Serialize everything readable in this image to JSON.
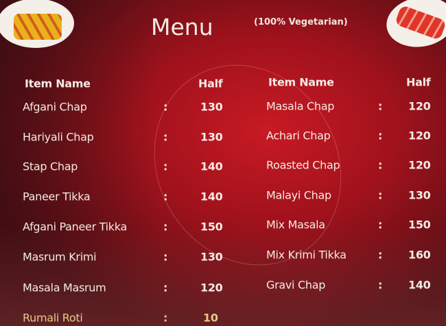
{
  "header": {
    "title": "Menu",
    "subtitle": "(100% Vegetarian)"
  },
  "columns": [
    {
      "header_name": "Item Name",
      "header_price": "Half",
      "items": [
        {
          "name": "Afgani Chap",
          "price": "130"
        },
        {
          "name": "Hariyali Chap",
          "price": "130"
        },
        {
          "name": "Stap Chap",
          "price": "140"
        },
        {
          "name": "Paneer Tikka",
          "price": "140"
        },
        {
          "name": "Afgani Paneer Tikka",
          "price": "150"
        },
        {
          "name": "Masrum Krimi",
          "price": "130"
        },
        {
          "name": "Masala Masrum",
          "price": "120"
        },
        {
          "name": "Rumali Roti",
          "price": "10"
        }
      ]
    },
    {
      "header_name": "Item Name",
      "header_price": "Half",
      "items": [
        {
          "name": "Masala Chap",
          "price": "120"
        },
        {
          "name": "Achari Chap",
          "price": "120"
        },
        {
          "name": "Roasted Chap",
          "price": "120"
        },
        {
          "name": "Malayi Chap",
          "price": "130"
        },
        {
          "name": "Mix Masala",
          "price": "150"
        },
        {
          "name": "Mix Krimi Tikka",
          "price": "160"
        },
        {
          "name": "Gravi Chap",
          "price": "140"
        }
      ]
    }
  ],
  "separator": ":",
  "colors": {
    "background": "#a0121c",
    "text": "#f4ebe4"
  }
}
